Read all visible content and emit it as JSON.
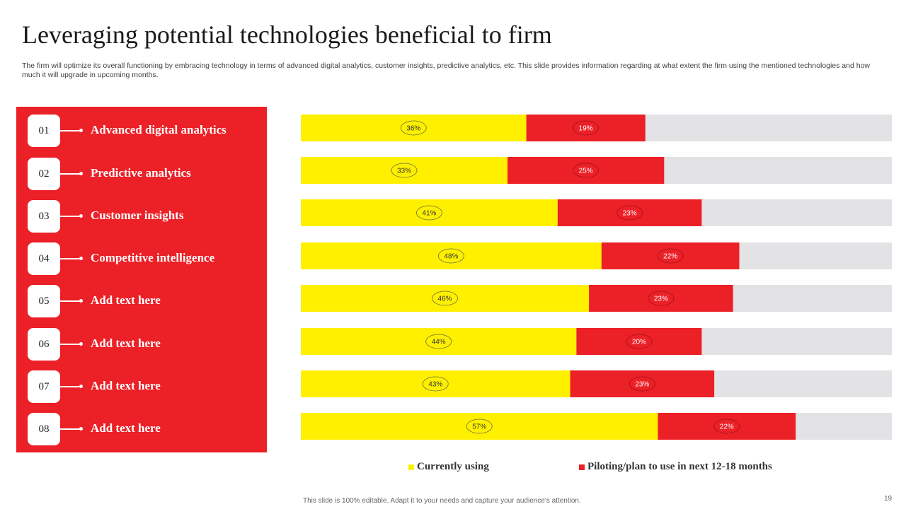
{
  "header": {
    "title": "Leveraging potential technologies beneficial to firm",
    "subtitle": "The firm will optimize its overall functioning by embracing technology in terms of advanced digital analytics, customer insights, predictive analytics, etc. This slide provides information regarding at what extent the firm using the mentioned technologies and how much it will upgrade in upcoming months."
  },
  "list": {
    "items": [
      {
        "num": "01",
        "label": "Advanced digital analytics"
      },
      {
        "num": "02",
        "label": "Predictive analytics"
      },
      {
        "num": "03",
        "label": "Customer insights"
      },
      {
        "num": "04",
        "label": "Competitive intelligence"
      },
      {
        "num": "05",
        "label": "Add text here"
      },
      {
        "num": "06",
        "label": "Add text here"
      },
      {
        "num": "07",
        "label": "Add text here"
      },
      {
        "num": "08",
        "label": "Add text here"
      }
    ]
  },
  "colors": {
    "panel": "#ec2027",
    "currently": "#fff000",
    "piloting": "#ec2027",
    "track": "#e3e3e6"
  },
  "chart_data": {
    "type": "bar",
    "orientation": "horizontal",
    "stacked": true,
    "categories": [
      "01",
      "02",
      "03",
      "04",
      "05",
      "06",
      "07",
      "08"
    ],
    "xlim": [
      0,
      100
    ],
    "series": [
      {
        "name": "Currently using",
        "values": [
          36,
          33,
          41,
          48,
          46,
          44,
          43,
          57
        ]
      },
      {
        "name": "Piloting/plan to use in next 12-18 months",
        "values": [
          19,
          25,
          23,
          22,
          23,
          20,
          23,
          22
        ]
      }
    ],
    "data_labels": {
      "Currently using": [
        "36%",
        "33%",
        "41%",
        "48%",
        "46%",
        "44%",
        "43%",
        "57%"
      ],
      "Piloting/plan to use in next 12-18 months": [
        "19%",
        "25%",
        "23%",
        "22%",
        "23%",
        "20%",
        "23%",
        "22%"
      ]
    },
    "legend": {
      "position": "bottom"
    }
  },
  "legend": {
    "currently_label": "Currently using",
    "piloting_label": "Piloting/plan to use in next 12-18 months"
  },
  "footer": {
    "note": "This slide is 100% editable. Adapt it to your needs and capture your audience's attention.",
    "page": "19"
  }
}
